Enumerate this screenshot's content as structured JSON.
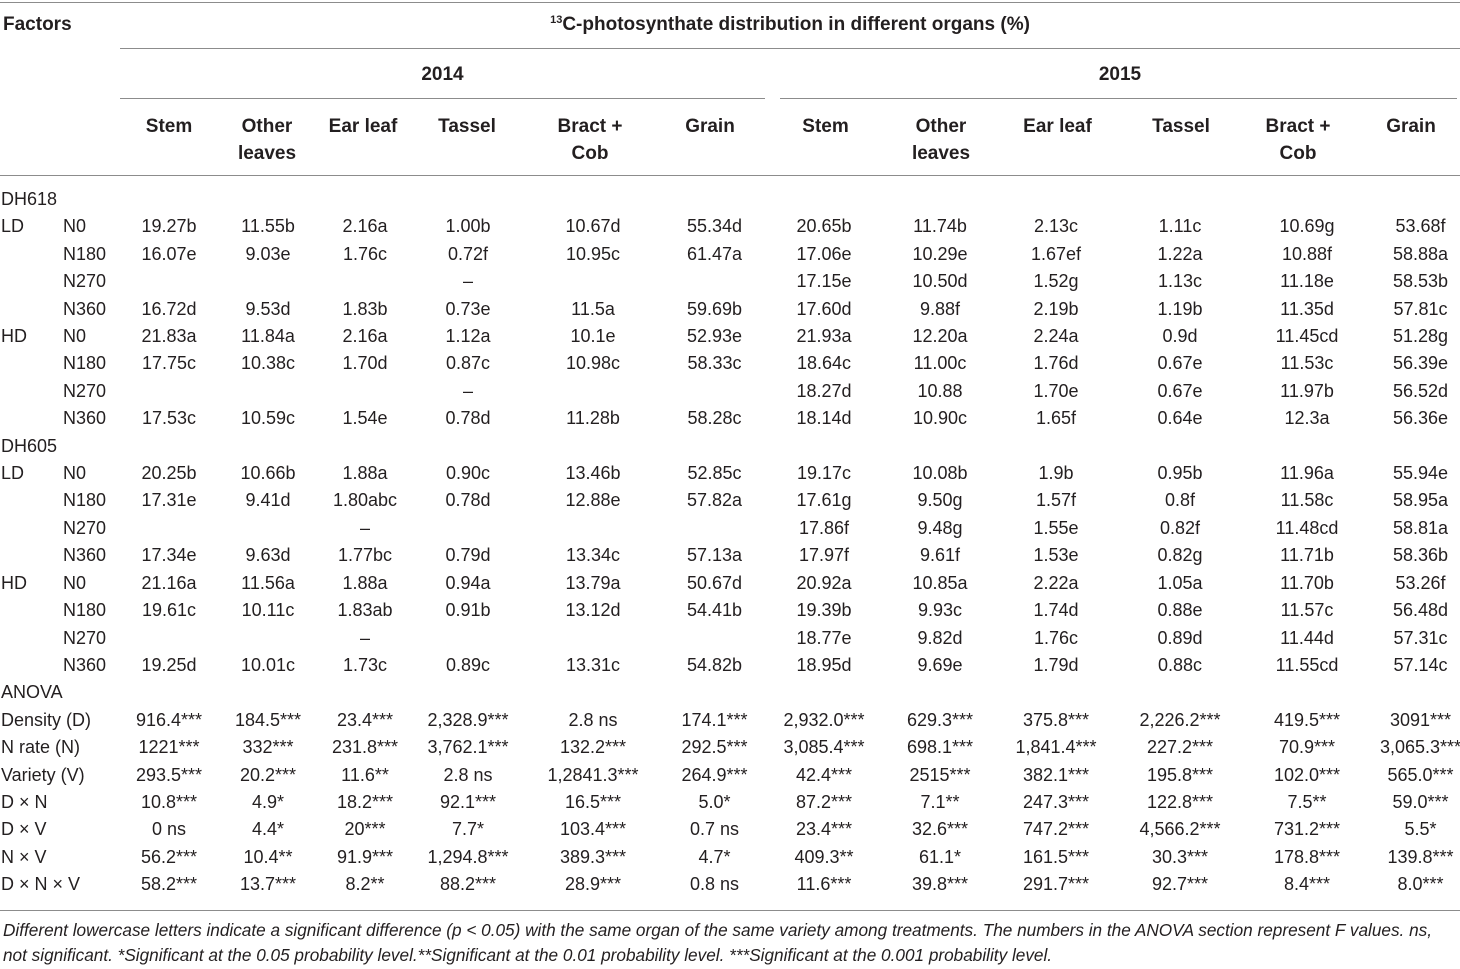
{
  "header": {
    "factors_label": "Factors",
    "title_sup": "13",
    "title_text": "C-photosynthate distribution in different organs (%)",
    "years": [
      "2014",
      "2015"
    ],
    "organs_2014": [
      "Stem",
      "Other leaves",
      "Ear leaf",
      "Tassel",
      "Bract + Cob",
      "Grain"
    ],
    "organs_2015": [
      "Stem",
      "Other leaves",
      "Ear leaf",
      "Tassel",
      "Bract + Cob",
      "Grain"
    ]
  },
  "rows": [
    {
      "a": "DH618",
      "b": "",
      "v": [
        "",
        "",
        "",
        "",
        "",
        "",
        "",
        "",
        "",
        "",
        "",
        ""
      ]
    },
    {
      "a": "LD",
      "b": "N0",
      "v": [
        "19.27b",
        "11.55b",
        "2.16a",
        "1.00b",
        "10.67d",
        "55.34d",
        "20.65b",
        "11.74b",
        "2.13c",
        "1.11c",
        "10.69g",
        "53.68f"
      ]
    },
    {
      "a": "",
      "b": "N180",
      "v": [
        "16.07e",
        "9.03e",
        "1.76c",
        "0.72f",
        "10.95c",
        "61.47a",
        "17.06e",
        "10.29e",
        "1.67ef",
        "1.22a",
        "10.88f",
        "58.88a"
      ]
    },
    {
      "a": "",
      "b": "N270",
      "v": [
        "",
        "",
        "",
        "–",
        "",
        "",
        "17.15e",
        "10.50d",
        "1.52g",
        "1.13c",
        "11.18e",
        "58.53b"
      ]
    },
    {
      "a": "",
      "b": "N360",
      "v": [
        "16.72d",
        "9.53d",
        "1.83b",
        "0.73e",
        "11.5a",
        "59.69b",
        "17.60d",
        "9.88f",
        "2.19b",
        "1.19b",
        "11.35d",
        "57.81c"
      ]
    },
    {
      "a": "HD",
      "b": "N0",
      "v": [
        "21.83a",
        "11.84a",
        "2.16a",
        "1.12a",
        "10.1e",
        "52.93e",
        "21.93a",
        "12.20a",
        "2.24a",
        "0.9d",
        "11.45cd",
        "51.28g"
      ]
    },
    {
      "a": "",
      "b": "N180",
      "v": [
        "17.75c",
        "10.38c",
        "1.70d",
        "0.87c",
        "10.98c",
        "58.33c",
        "18.64c",
        "11.00c",
        "1.76d",
        "0.67e",
        "11.53c",
        "56.39e"
      ]
    },
    {
      "a": "",
      "b": "N270",
      "v": [
        "",
        "",
        "",
        "–",
        "",
        "",
        "18.27d",
        "10.88",
        "1.70e",
        "0.67e",
        "11.97b",
        "56.52d"
      ]
    },
    {
      "a": "",
      "b": "N360",
      "v": [
        "17.53c",
        "10.59c",
        "1.54e",
        "0.78d",
        "11.28b",
        "58.28c",
        "18.14d",
        "10.90c",
        "1.65f",
        "0.64e",
        "12.3a",
        "56.36e"
      ]
    },
    {
      "a": "DH605",
      "b": "",
      "v": [
        "",
        "",
        "",
        "",
        "",
        "",
        "",
        "",
        "",
        "",
        "",
        ""
      ]
    },
    {
      "a": "LD",
      "b": "N0",
      "v": [
        "20.25b",
        "10.66b",
        "1.88a",
        "0.90c",
        "13.46b",
        "52.85c",
        "19.17c",
        "10.08b",
        "1.9b",
        "0.95b",
        "11.96a",
        "55.94e"
      ]
    },
    {
      "a": "",
      "b": "N180",
      "v": [
        "17.31e",
        "9.41d",
        "1.80abc",
        "0.78d",
        "12.88e",
        "57.82a",
        "17.61g",
        "9.50g",
        "1.57f",
        "0.8f",
        "11.58c",
        "58.95a"
      ]
    },
    {
      "a": "",
      "b": "N270",
      "v": [
        "",
        "",
        "–",
        "",
        "",
        "",
        "17.86f",
        "9.48g",
        "1.55e",
        "0.82f",
        "11.48cd",
        "58.81a"
      ]
    },
    {
      "a": "",
      "b": "N360",
      "v": [
        "17.34e",
        "9.63d",
        "1.77bc",
        "0.79d",
        "13.34c",
        "57.13a",
        "17.97f",
        "9.61f",
        "1.53e",
        "0.82g",
        "11.71b",
        "58.36b"
      ]
    },
    {
      "a": "HD",
      "b": "N0",
      "v": [
        "21.16a",
        "11.56a",
        "1.88a",
        "0.94a",
        "13.79a",
        "50.67d",
        "20.92a",
        "10.85a",
        "2.22a",
        "1.05a",
        "11.70b",
        "53.26f"
      ]
    },
    {
      "a": "",
      "b": "N180",
      "v": [
        "19.61c",
        "10.11c",
        "1.83ab",
        "0.91b",
        "13.12d",
        "54.41b",
        "19.39b",
        "9.93c",
        "1.74d",
        "0.88e",
        "11.57c",
        "56.48d"
      ]
    },
    {
      "a": "",
      "b": "N270",
      "v": [
        "",
        "",
        "–",
        "",
        "",
        "",
        "18.77e",
        "9.82d",
        "1.76c",
        "0.89d",
        "11.44d",
        "57.31c"
      ]
    },
    {
      "a": "",
      "b": "N360",
      "v": [
        "19.25d",
        "10.01c",
        "1.73c",
        "0.89c",
        "13.31c",
        "54.82b",
        "18.95d",
        "9.69e",
        "1.79d",
        "0.88c",
        "11.55cd",
        "57.14c"
      ]
    },
    {
      "a": "ANOVA",
      "b": "",
      "v": [
        "",
        "",
        "",
        "",
        "",
        "",
        "",
        "",
        "",
        "",
        "",
        ""
      ]
    },
    {
      "a": "Density (D)",
      "b": "",
      "v": [
        "916.4***",
        "184.5***",
        "23.4***",
        "2,328.9***",
        "2.8 ns",
        "174.1***",
        "2,932.0***",
        "629.3***",
        "375.8***",
        "2,226.2***",
        "419.5***",
        "3091***"
      ]
    },
    {
      "a": "N rate (N)",
      "b": "",
      "v": [
        "1221***",
        "332***",
        "231.8***",
        "3,762.1***",
        "132.2***",
        "292.5***",
        "3,085.4***",
        "698.1***",
        "1,841.4***",
        "227.2***",
        "70.9***",
        "3,065.3***"
      ]
    },
    {
      "a": "Variety (V)",
      "b": "",
      "v": [
        "293.5***",
        "20.2***",
        "11.6**",
        "2.8 ns",
        "1,2841.3***",
        "264.9***",
        "42.4***",
        "2515***",
        "382.1***",
        "195.8***",
        "102.0***",
        "565.0***"
      ]
    },
    {
      "a": "D × N",
      "b": "",
      "v": [
        "10.8***",
        "4.9*",
        "18.2***",
        "92.1***",
        "16.5***",
        "5.0*",
        "87.2***",
        "7.1**",
        "247.3***",
        "122.8***",
        "7.5**",
        "59.0***"
      ]
    },
    {
      "a": "D × V",
      "b": "",
      "v": [
        "0 ns",
        "4.4*",
        "20***",
        "7.7*",
        "103.4***",
        "0.7 ns",
        "23.4***",
        "32.6***",
        "747.2***",
        "4,566.2***",
        "731.2***",
        "5.5*"
      ]
    },
    {
      "a": "N × V",
      "b": "",
      "v": [
        "56.2***",
        "10.4**",
        "91.9***",
        "1,294.8***",
        "389.3***",
        "4.7*",
        "409.3**",
        "61.1*",
        "161.5***",
        "30.3***",
        "178.8***",
        "139.8***"
      ]
    },
    {
      "a": "D × N × V",
      "b": "",
      "v": [
        "58.2***",
        "13.7***",
        "8.2**",
        "88.2***",
        "28.9***",
        "0.8 ns",
        "11.6***",
        "39.8***",
        "291.7***",
        "92.7***",
        "8.4***",
        "8.0***"
      ]
    }
  ],
  "footnote": "Different lowercase letters indicate a significant difference (p < 0.05) with the same organ of the same variety among treatments. The numbers in the ANOVA section represent F values. ns, not significant. *Significant at the 0.05 probability level.**Significant at the 0.01 probability level. ***Significant at the 0.001 probability level."
}
